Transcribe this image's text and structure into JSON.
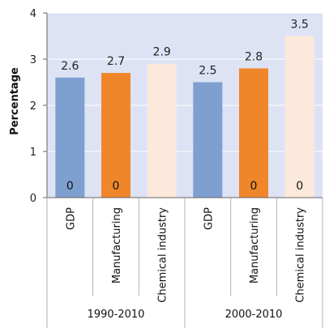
{
  "chart_data": {
    "type": "bar",
    "ylabel": "Percentage",
    "ylim": [
      0,
      4
    ],
    "yticks": [
      0,
      1,
      2,
      3,
      4
    ],
    "grid": "horizontal",
    "groups": [
      {
        "label": "1990-2010",
        "bars": [
          {
            "category": "GDP",
            "value": 2.6,
            "value_label": "2.6",
            "base_label": "0",
            "color": "#7f9fd0"
          },
          {
            "category": "Manufacturing",
            "value": 2.7,
            "value_label": "2.7",
            "base_label": "0",
            "color": "#f0862a"
          },
          {
            "category": "Chemical industry",
            "value": 2.9,
            "value_label": "2.9",
            "base_label": "",
            "color": "#fde9dc"
          }
        ]
      },
      {
        "label": "2000-2010",
        "bars": [
          {
            "category": "GDP",
            "value": 2.5,
            "value_label": "2.5",
            "base_label": "",
            "color": "#7f9fd0"
          },
          {
            "category": "Manufacturing",
            "value": 2.8,
            "value_label": "2.8",
            "base_label": "0",
            "color": "#f0862a"
          },
          {
            "category": "Chemical industry",
            "value": 3.5,
            "value_label": "3.5",
            "base_label": "0",
            "color": "#fde9dc"
          }
        ]
      }
    ],
    "colors": {
      "plot_background": "#dde3f5",
      "grid": "#ffffff",
      "axis": "#666666"
    }
  }
}
